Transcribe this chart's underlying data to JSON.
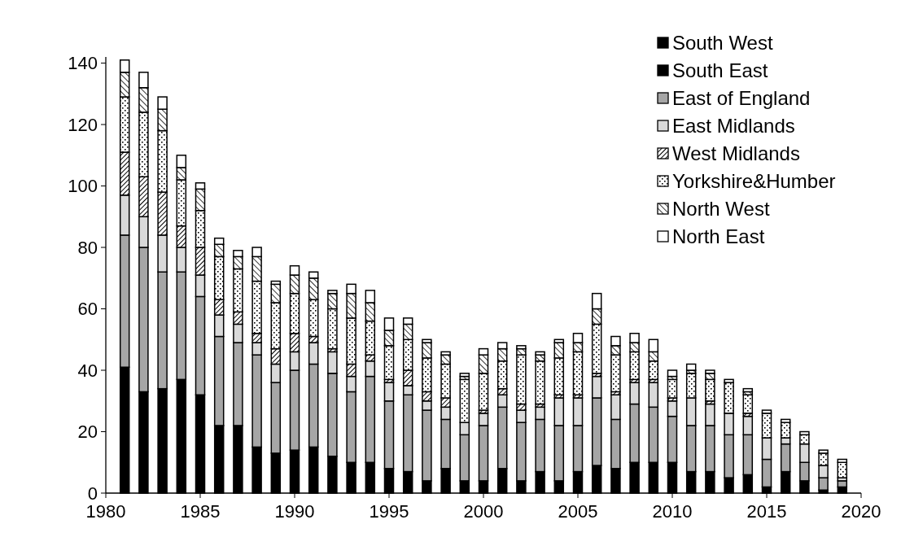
{
  "chart_data": {
    "type": "bar",
    "stacked": true,
    "x": [
      1981,
      1982,
      1983,
      1984,
      1985,
      1986,
      1987,
      1988,
      1989,
      1990,
      1991,
      1992,
      1993,
      1994,
      1995,
      1996,
      1997,
      1998,
      1999,
      2000,
      2001,
      2002,
      2003,
      2004,
      2005,
      2006,
      2007,
      2008,
      2009,
      2010,
      2011,
      2012,
      2013,
      2014,
      2015,
      2016,
      2017,
      2018,
      2019
    ],
    "series": [
      {
        "name": "South West",
        "color": "#000000",
        "values": [
          null,
          null,
          null,
          null,
          null,
          null,
          null,
          null,
          null,
          null,
          null,
          null,
          null,
          null,
          null,
          null,
          null,
          null,
          null,
          null,
          null,
          null,
          null,
          null,
          null,
          null,
          null,
          null,
          null,
          null,
          null,
          null,
          null,
          null,
          null,
          null,
          null,
          null,
          null
        ]
      },
      {
        "name": "South East",
        "color": "#000000",
        "values": [
          41,
          33,
          34,
          37,
          32,
          22,
          22,
          15,
          13,
          14,
          15,
          12,
          10,
          10,
          8,
          7,
          4,
          8,
          4,
          4,
          8,
          4,
          7,
          4,
          7,
          9,
          8,
          10,
          10,
          10,
          7,
          7,
          5,
          6,
          2,
          7,
          4,
          1,
          2
        ]
      },
      {
        "name": "East of England",
        "color": "#a6a6a6",
        "values": [
          43,
          47,
          38,
          35,
          32,
          29,
          27,
          30,
          23,
          26,
          27,
          27,
          23,
          28,
          22,
          25,
          23,
          16,
          15,
          18,
          20,
          19,
          17,
          18,
          15,
          22,
          16,
          19,
          18,
          15,
          15,
          15,
          14,
          13,
          9,
          9,
          6,
          4,
          2
        ]
      },
      {
        "name": "East Midlands",
        "color": "#d9d9d9",
        "values": [
          13,
          10,
          12,
          8,
          7,
          7,
          6,
          4,
          6,
          6,
          7,
          7,
          5,
          5,
          6,
          3,
          3,
          4,
          4,
          4,
          4,
          4,
          4,
          9,
          9,
          7,
          8,
          7,
          8,
          5,
          9,
          7,
          7,
          6,
          7,
          2,
          6,
          4,
          1
        ]
      },
      {
        "name": "West Midlands",
        "color": "#000000",
        "values": [
          14,
          13,
          14,
          7,
          9,
          5,
          4,
          3,
          5,
          6,
          2,
          1,
          4,
          2,
          1,
          5,
          3,
          3,
          0,
          1,
          2,
          2,
          1,
          1,
          1,
          1,
          1,
          1,
          1,
          1,
          0,
          1,
          0,
          1,
          0,
          0,
          0,
          0,
          0
        ]
      },
      {
        "name": "Yorkshire&Humber",
        "color": "#000000",
        "values": [
          18,
          21,
          20,
          15,
          12,
          14,
          14,
          17,
          15,
          13,
          12,
          13,
          15,
          11,
          11,
          10,
          11,
          11,
          14,
          12,
          9,
          16,
          14,
          12,
          14,
          16,
          12,
          9,
          6,
          6,
          8,
          7,
          10,
          6,
          8,
          5,
          3,
          4,
          5
        ]
      },
      {
        "name": "North West",
        "color": "#000000",
        "values": [
          8,
          8,
          7,
          4,
          7,
          4,
          4,
          8,
          6,
          6,
          7,
          5,
          8,
          6,
          5,
          5,
          5,
          3,
          1,
          6,
          4,
          2,
          2,
          5,
          3,
          5,
          3,
          3,
          3,
          1,
          1,
          2,
          0,
          1,
          0,
          0,
          0,
          0,
          0
        ]
      },
      {
        "name": "North East",
        "color": "#ffffff",
        "values": [
          4,
          5,
          4,
          4,
          2,
          2,
          2,
          3,
          1,
          3,
          2,
          1,
          3,
          4,
          4,
          2,
          1,
          1,
          1,
          2,
          2,
          1,
          1,
          1,
          3,
          5,
          3,
          3,
          4,
          2,
          2,
          1,
          1,
          1,
          1,
          1,
          1,
          1,
          1
        ]
      }
    ],
    "xlim": [
      1980,
      2020
    ],
    "xticks": [
      1980,
      1985,
      1990,
      1995,
      2000,
      2005,
      2010,
      2015,
      2020
    ],
    "ylim": [
      0,
      142
    ],
    "yticks": [
      0,
      20,
      40,
      60,
      80,
      100,
      120,
      140
    ],
    "grid": false,
    "legend": "top right"
  }
}
